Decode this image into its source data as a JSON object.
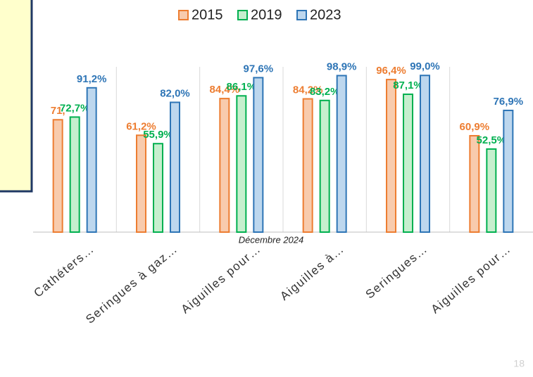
{
  "chart_data": {
    "type": "bar",
    "categories": [
      "Cathéters…",
      "Seringues à gaz…",
      "Aiguilles pour…",
      "Aiguilles à…",
      "Seringues…",
      "Aiguilles pour…"
    ],
    "series": [
      {
        "name": "2015",
        "color": "#ed7d31",
        "fill": "#f8cbad",
        "values": [
          71,
          61.2,
          84.4,
          84.2,
          96.4,
          60.9
        ],
        "value_labels": [
          "71,",
          "61,2%",
          "84,4%",
          "84,2%",
          "96,4%",
          "60,9%"
        ]
      },
      {
        "name": "2019",
        "color": "#00b050",
        "fill": "#c6efce",
        "values": [
          72.7,
          55.9,
          86.1,
          83.2,
          87.1,
          52.5
        ],
        "value_labels": [
          "72,7%",
          "55,9%",
          "86,1%",
          "83,2%",
          "87,1%",
          "52,5%"
        ]
      },
      {
        "name": "2023",
        "color": "#2e75b6",
        "fill": "#bdd7ee",
        "values": [
          91.2,
          82.0,
          97.6,
          98.9,
          99.0,
          76.9
        ],
        "value_labels": [
          "91,2%",
          "82,0%",
          "97,6%",
          "98,9%",
          "99,0%",
          "76,9%"
        ]
      }
    ],
    "ylim": [
      0,
      100
    ]
  },
  "footer": "Décembre  2024",
  "page_number": "18"
}
